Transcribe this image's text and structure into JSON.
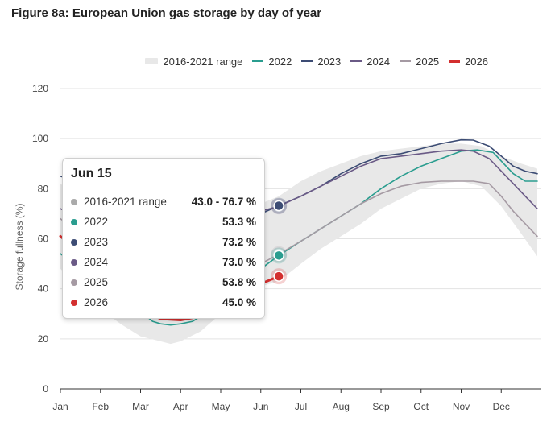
{
  "title": "Figure 8a: European Union gas storage by day of year",
  "tooltip": {
    "date": "Jun 15",
    "rows": [
      {
        "name": "2016-2021 range",
        "value": "43.0 - 76.7 %",
        "color": "#aaaaaa"
      },
      {
        "name": "2022",
        "value": "53.3 %",
        "color": "#2a9d8f"
      },
      {
        "name": "2023",
        "value": "73.2 %",
        "color": "#3c4c74"
      },
      {
        "name": "2024",
        "value": "73.0 %",
        "color": "#6a5a86"
      },
      {
        "name": "2025",
        "value": "53.8 %",
        "color": "#a59aa3"
      },
      {
        "name": "2026",
        "value": "45.0 %",
        "color": "#d32f2f"
      }
    ]
  },
  "chart_data": {
    "type": "line",
    "title": "Figure 8a: European Union gas storage by day of year",
    "xlabel": "",
    "ylabel": "Storage fullness (%)",
    "ylim": [
      0,
      120
    ],
    "yticks": [
      0,
      20,
      40,
      60,
      80,
      100,
      120
    ],
    "xlim": [
      0,
      12
    ],
    "month_labels": [
      "Jan",
      "Feb",
      "Mar",
      "Apr",
      "May",
      "Jun",
      "Jul",
      "Aug",
      "Sep",
      "Oct",
      "Nov",
      "Dec"
    ],
    "grid": true,
    "legend_position": "top",
    "range_band": {
      "name": "2016-2021 range",
      "color": "#e8e8e8",
      "x": [
        0,
        0.5,
        1,
        1.5,
        2,
        2.5,
        2.75,
        3,
        3.5,
        4,
        4.5,
        5,
        5.45,
        6,
        6.5,
        7,
        7.5,
        8,
        8.5,
        9,
        9.5,
        10,
        10.5,
        11,
        11.5,
        11.9
      ],
      "low": [
        48,
        40,
        32,
        26,
        21,
        19,
        18,
        19,
        23,
        30,
        37,
        41,
        43,
        50,
        56,
        61,
        66,
        72,
        76,
        80,
        82,
        83,
        81,
        73,
        62,
        53
      ],
      "high": [
        82,
        76,
        68,
        60,
        52,
        48,
        46,
        47,
        53,
        62,
        70,
        74,
        77,
        83,
        87,
        90,
        93,
        95,
        96,
        97,
        98,
        98,
        97,
        93,
        90,
        88
      ]
    },
    "series": [
      {
        "name": "2022",
        "color": "#2a9d8f",
        "x": [
          0,
          0.5,
          1,
          1.5,
          2,
          2.3,
          2.5,
          2.75,
          3,
          3.3,
          3.6,
          4,
          4.5,
          5,
          5.45,
          6,
          6.5,
          7,
          7.5,
          8,
          8.5,
          9,
          9.5,
          10,
          10.4,
          10.8,
          11,
          11.3,
          11.6,
          11.9
        ],
        "y": [
          54,
          48,
          42,
          36,
          31,
          27,
          26,
          25.5,
          26,
          27,
          30,
          35,
          42,
          48,
          53.3,
          59,
          64,
          69,
          74,
          80,
          85,
          89,
          92,
          95,
          95.5,
          94.5,
          91,
          86,
          83,
          83
        ]
      },
      {
        "name": "2023",
        "color": "#3c4c74",
        "x": [
          0,
          0.5,
          1,
          1.5,
          2,
          2.5,
          3,
          3.5,
          4,
          4.5,
          5,
          5.45,
          6,
          6.5,
          7,
          7.5,
          8,
          8.5,
          9,
          9.5,
          10,
          10.3,
          10.7,
          11,
          11.3,
          11.6,
          11.9
        ],
        "y": [
          85,
          82,
          76,
          69,
          63,
          58,
          56,
          57,
          61,
          66,
          70,
          73.2,
          77,
          81,
          86,
          90,
          93,
          94,
          96,
          98,
          99.5,
          99.4,
          97,
          93,
          89,
          87,
          86
        ]
      },
      {
        "name": "2024",
        "color": "#6a5a86",
        "x": [
          0,
          0.5,
          1,
          1.5,
          2,
          2.5,
          3,
          3.5,
          4,
          4.5,
          5,
          5.45,
          6,
          6.5,
          7,
          7.5,
          8,
          8.5,
          9,
          9.5,
          10,
          10.3,
          10.7,
          11,
          11.3,
          11.6,
          11.9
        ],
        "y": [
          72,
          68,
          64,
          60,
          58,
          58,
          59,
          62,
          65,
          68,
          71,
          73,
          77,
          81,
          85,
          89,
          92,
          93,
          94,
          95,
          95.5,
          95,
          92,
          87,
          82,
          77,
          72
        ]
      },
      {
        "name": "2025",
        "color": "#a59aa3",
        "x": [
          0,
          0.5,
          1,
          1.5,
          2,
          2.5,
          3,
          3.5,
          4,
          4.5,
          5,
          5.45,
          6,
          6.5,
          7,
          7.5,
          8,
          8.5,
          9,
          9.5,
          10,
          10.3,
          10.7,
          11,
          11.3,
          11.6,
          11.9
        ],
        "y": [
          68,
          62,
          55,
          48,
          41,
          36,
          34,
          36,
          40,
          46,
          50,
          53.8,
          59,
          64,
          69,
          74,
          78,
          81,
          82.5,
          83,
          83,
          83,
          82,
          77,
          71,
          66,
          61
        ]
      },
      {
        "name": "2026",
        "color": "#d32f2f",
        "x": [
          0,
          0.5,
          1,
          1.5,
          2,
          2.5,
          3,
          3.5,
          4,
          4.5,
          5,
          5.45
        ],
        "y": [
          61,
          54,
          46,
          38,
          32,
          28,
          27.5,
          29,
          32,
          37,
          42,
          45
        ]
      }
    ],
    "tooltip_x": 5.45
  }
}
